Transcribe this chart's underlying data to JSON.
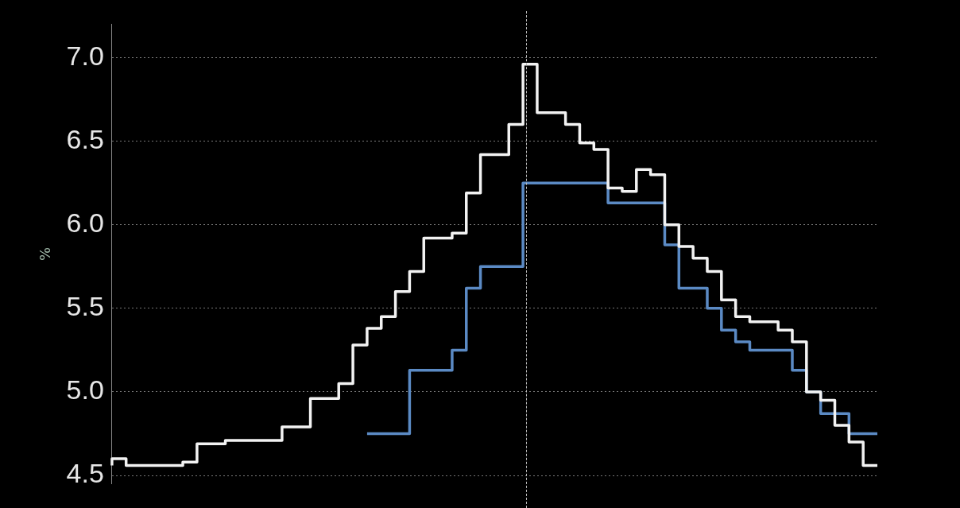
{
  "chart_data": {
    "type": "step",
    "ylabel": "%",
    "categories": [
      null,
      null,
      null,
      null,
      null,
      null,
      null,
      null,
      null,
      null,
      null,
      null,
      null,
      null,
      null,
      null,
      null,
      null,
      null,
      null,
      null,
      null,
      null,
      null,
      null,
      null,
      null,
      null,
      null,
      null,
      null,
      null,
      null,
      null,
      null,
      null,
      null,
      null,
      null,
      null,
      null,
      null,
      null,
      null,
      null,
      null,
      null,
      null,
      null,
      null,
      null,
      null,
      null,
      null,
      null
    ],
    "series": [
      {
        "color": "#f2f2f2",
        "values": [
          4.56,
          4.6,
          4.56,
          4.56,
          4.56,
          4.56,
          4.58,
          4.69,
          4.69,
          4.71,
          4.71,
          4.71,
          4.71,
          4.79,
          4.79,
          4.96,
          4.96,
          5.05,
          5.28,
          5.38,
          5.45,
          5.6,
          5.72,
          5.92,
          5.92,
          5.95,
          6.19,
          6.42,
          6.42,
          6.6,
          6.96,
          6.67,
          6.67,
          6.6,
          6.49,
          6.45,
          6.22,
          6.2,
          6.33,
          6.3,
          6.0,
          5.87,
          5.8,
          5.72,
          5.55,
          5.45,
          5.42,
          5.42,
          5.37,
          5.3,
          5.0,
          4.95,
          4.8,
          4.7,
          4.56
        ]
      },
      {
        "color": "#5b8ac4",
        "values": [
          null,
          null,
          null,
          null,
          null,
          null,
          null,
          null,
          null,
          null,
          null,
          null,
          null,
          null,
          null,
          null,
          null,
          null,
          4.75,
          4.75,
          4.75,
          4.75,
          5.13,
          5.13,
          5.13,
          5.25,
          5.62,
          5.75,
          5.75,
          5.75,
          6.25,
          6.25,
          6.25,
          6.25,
          6.25,
          6.25,
          6.13,
          6.13,
          6.13,
          6.13,
          5.88,
          5.62,
          5.62,
          5.5,
          5.37,
          5.3,
          5.25,
          5.25,
          5.25,
          5.13,
          5.0,
          4.87,
          4.87,
          4.75,
          4.75
        ]
      }
    ],
    "ylim": [
      4.45,
      7.2
    ],
    "yticks": [
      {
        "value": 4.5,
        "label": "4.5"
      },
      {
        "value": 5,
        "label": "5.0"
      },
      {
        "value": 5.5,
        "label": "5.5"
      },
      {
        "value": 6,
        "label": "6.0"
      },
      {
        "value": 6.5,
        "label": "6.5"
      },
      {
        "value": 7,
        "label": "7.0"
      }
    ],
    "grid": "y",
    "legend": false,
    "tick_labels": "y",
    "marker": "none",
    "line_style": "solid"
  }
}
